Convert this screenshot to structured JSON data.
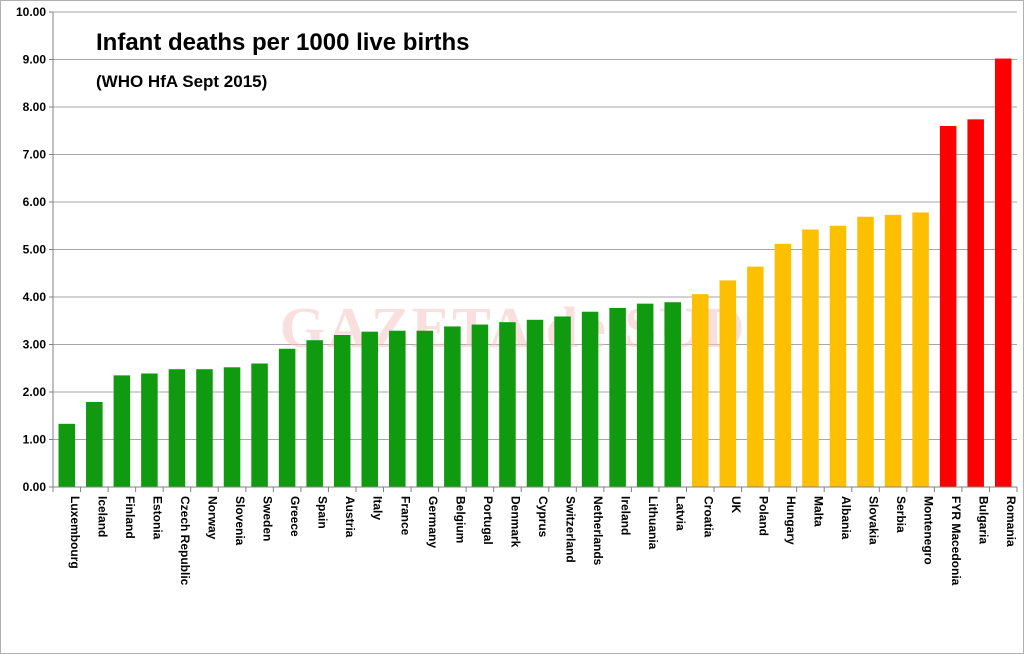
{
  "chart_data": {
    "type": "bar",
    "title": "Infant deaths per 1000 live births",
    "subtitle": "(WHO HfA Sept 2015)",
    "watermark": "GAZETA de SUD",
    "xlabel": "",
    "ylabel": "",
    "ylim": [
      0,
      10
    ],
    "yticks": [
      "0.00",
      "1.00",
      "2.00",
      "3.00",
      "4.00",
      "5.00",
      "6.00",
      "7.00",
      "8.00",
      "9.00",
      "10.00"
    ],
    "grid": true,
    "legend": "none",
    "categories": [
      "Luxembourg",
      "Iceland",
      "Finland",
      "Estonia",
      "Czech Republic",
      "Norway",
      "Slovenia",
      "Sweden",
      "Greece",
      "Spain",
      "Austria",
      "Italy",
      "France",
      "Germany",
      "Belgium",
      "Portugal",
      "Denmark",
      "Cyprus",
      "Switzerland",
      "Netherlands",
      "Ireland",
      "Lithuania",
      "Latvia",
      "Croatia",
      "UK",
      "Poland",
      "Hungary",
      "Malta",
      "Albania",
      "Slovakia",
      "Serbia",
      "Montenegro",
      "FYR Macedonia",
      "Bulgaria",
      "Romania"
    ],
    "values": [
      1.33,
      1.79,
      2.35,
      2.39,
      2.48,
      2.48,
      2.52,
      2.6,
      2.91,
      3.09,
      3.2,
      3.27,
      3.29,
      3.29,
      3.38,
      3.42,
      3.47,
      3.52,
      3.59,
      3.69,
      3.77,
      3.86,
      3.89,
      4.06,
      4.35,
      4.64,
      5.12,
      5.42,
      5.5,
      5.69,
      5.73,
      5.78,
      7.6,
      7.74,
      9.02
    ],
    "colors": [
      "green",
      "green",
      "green",
      "green",
      "green",
      "green",
      "green",
      "green",
      "green",
      "green",
      "green",
      "green",
      "green",
      "green",
      "green",
      "green",
      "green",
      "green",
      "green",
      "green",
      "green",
      "green",
      "green",
      "amber",
      "amber",
      "amber",
      "amber",
      "amber",
      "amber",
      "amber",
      "amber",
      "amber",
      "red",
      "red",
      "red"
    ],
    "palette": {
      "green": "#0f9a0f",
      "amber": "#fdc000",
      "red": "#ff0000",
      "grid": "#a6a6a6",
      "axis": "#808080"
    }
  }
}
